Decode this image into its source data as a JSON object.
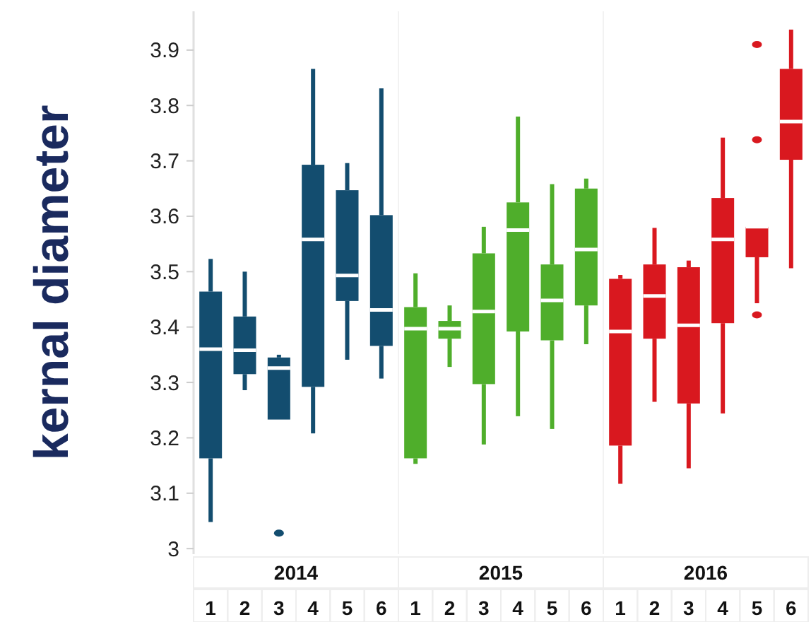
{
  "chart_data": [
    {
      "type": "box",
      "xlabel": "2014",
      "ylabel": "kernal diameter",
      "categories": [
        "1",
        "2",
        "3",
        "4",
        "5",
        "6"
      ],
      "ylim": [
        2.99,
        3.97
      ],
      "yticks": [
        3,
        3.1,
        3.2,
        3.3,
        3.4,
        3.5,
        3.6,
        3.7,
        3.8,
        3.9
      ],
      "grid": false,
      "series": [
        {
          "color": "#134d6f",
          "boxes": [
            {
              "low": 3.048,
              "q1": 3.163,
              "median": 3.36,
              "q3": 3.464,
              "high": 3.523
            },
            {
              "low": 3.286,
              "q1": 3.315,
              "median": 3.358,
              "q3": 3.419,
              "high": 3.5
            },
            {
              "low": 3.233,
              "q1": 3.233,
              "median": 3.326,
              "q3": 3.345,
              "high": 3.35,
              "outliers": [
                3.028
              ]
            },
            {
              "low": 3.208,
              "q1": 3.292,
              "median": 3.558,
              "q3": 3.693,
              "high": 3.866
            },
            {
              "low": 3.341,
              "q1": 3.447,
              "median": 3.493,
              "q3": 3.647,
              "high": 3.696
            },
            {
              "low": 3.307,
              "q1": 3.366,
              "median": 3.431,
              "q3": 3.602,
              "high": 3.831
            }
          ]
        }
      ]
    },
    {
      "type": "box",
      "xlabel": "2015",
      "categories": [
        "1",
        "2",
        "3",
        "4",
        "5",
        "6"
      ],
      "ylim": [
        2.99,
        3.97
      ],
      "tick_labels": "x",
      "grid": false,
      "series": [
        {
          "color": "#4fae2b",
          "boxes": [
            {
              "low": 3.153,
              "q1": 3.163,
              "median": 3.397,
              "q3": 3.436,
              "high": 3.497
            },
            {
              "low": 3.328,
              "q1": 3.379,
              "median": 3.397,
              "q3": 3.411,
              "high": 3.439
            },
            {
              "low": 3.188,
              "q1": 3.297,
              "median": 3.428,
              "q3": 3.533,
              "high": 3.581
            },
            {
              "low": 3.239,
              "q1": 3.392,
              "median": 3.575,
              "q3": 3.625,
              "high": 3.78
            },
            {
              "low": 3.216,
              "q1": 3.376,
              "median": 3.448,
              "q3": 3.513,
              "high": 3.658
            },
            {
              "low": 3.369,
              "q1": 3.439,
              "median": 3.54,
              "q3": 3.65,
              "high": 3.668
            }
          ]
        }
      ]
    },
    {
      "type": "box",
      "xlabel": "2016",
      "categories": [
        "1",
        "2",
        "3",
        "4",
        "5",
        "6"
      ],
      "ylim": [
        2.99,
        3.97
      ],
      "tick_labels": "x",
      "grid": false,
      "series": [
        {
          "color": "#d9181f",
          "boxes": [
            {
              "low": 3.117,
              "q1": 3.186,
              "median": 3.392,
              "q3": 3.487,
              "high": 3.494
            },
            {
              "low": 3.265,
              "q1": 3.379,
              "median": 3.456,
              "q3": 3.513,
              "high": 3.579
            },
            {
              "low": 3.145,
              "q1": 3.262,
              "median": 3.403,
              "q3": 3.508,
              "high": 3.52
            },
            {
              "low": 3.244,
              "q1": 3.407,
              "median": 3.558,
              "q3": 3.633,
              "high": 3.742
            },
            {
              "low": 3.443,
              "q1": 3.526,
              "median": 3.581,
              "q3": 3.581,
              "high": 3.581,
              "outliers": [
                3.91,
                3.738,
                3.422
              ]
            },
            {
              "low": 3.506,
              "q1": 3.702,
              "median": 3.771,
              "q3": 3.866,
              "high": 3.937
            }
          ]
        }
      ]
    }
  ]
}
